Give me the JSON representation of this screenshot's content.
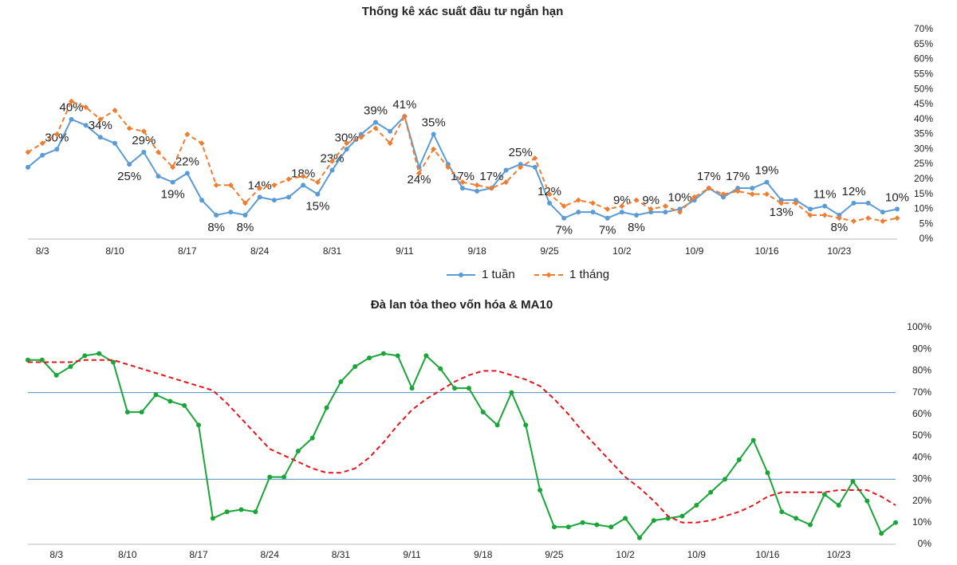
{
  "chart_data": [
    {
      "type": "line",
      "title": "Thống kê xác suất đầu tư ngắn hạn",
      "categories": [
        null,
        "8/3",
        null,
        null,
        null,
        null,
        "8/10",
        null,
        null,
        null,
        null,
        "8/17",
        null,
        null,
        null,
        null,
        "8/24",
        null,
        null,
        null,
        null,
        "8/31",
        null,
        null,
        null,
        null,
        "9/11",
        null,
        null,
        null,
        null,
        "9/18",
        null,
        null,
        null,
        null,
        "9/25",
        null,
        null,
        null,
        null,
        "10/2",
        null,
        null,
        null,
        null,
        "10/9",
        null,
        null,
        null,
        null,
        "10/16",
        null,
        null,
        null,
        null,
        "10/23",
        null,
        null,
        null,
        null
      ],
      "series": [
        {
          "name": "1 tuần",
          "color": "#5b9bd5",
          "dash": false,
          "markers": "circle",
          "values": [
            24,
            28,
            30,
            40,
            38,
            34,
            32,
            25,
            29,
            21,
            19,
            22,
            13,
            8,
            9,
            8,
            14,
            13,
            14,
            18,
            15,
            23,
            30,
            35,
            39,
            36,
            41,
            24,
            35,
            25,
            17,
            16,
            17,
            23,
            25,
            24,
            12,
            7,
            9,
            9,
            7,
            9,
            8,
            9,
            9,
            10,
            13,
            17,
            14,
            17,
            17,
            19,
            13,
            13,
            10,
            11,
            8,
            12,
            12,
            9,
            10
          ],
          "value_labels": [
            null,
            null,
            "30%",
            "40%",
            null,
            "34%",
            null,
            "25%",
            "29%",
            null,
            "19%",
            "22%",
            null,
            "8%",
            null,
            "8%",
            "14%",
            null,
            null,
            "18%",
            "15%",
            "23%",
            "30%",
            null,
            "39%",
            null,
            "41%",
            "24%",
            "35%",
            null,
            "17%",
            null,
            "17%",
            null,
            "25%",
            null,
            "12%",
            "7%",
            null,
            null,
            "7%",
            "9%",
            "8%",
            "9%",
            null,
            "10%",
            null,
            "17%",
            null,
            "17%",
            null,
            "19%",
            "13%",
            null,
            null,
            "11%",
            "8%",
            "12%",
            null,
            null,
            "10%"
          ]
        },
        {
          "name": "1 tháng",
          "color": "#ed7d31",
          "dash": true,
          "markers": "diamond",
          "values": [
            29,
            32,
            35,
            46,
            44,
            40,
            43,
            37,
            36,
            29,
            24,
            35,
            32,
            18,
            18,
            12,
            17,
            18,
            20,
            21,
            19,
            26,
            32,
            34,
            37,
            32,
            41,
            22,
            30,
            24,
            19,
            18,
            17,
            19,
            24,
            27,
            15,
            11,
            13,
            12,
            10,
            11,
            13,
            10,
            11,
            9,
            14,
            17,
            15,
            16,
            15,
            15,
            12,
            12,
            8,
            8,
            7,
            6,
            7,
            6,
            7
          ]
        }
      ],
      "ylim": [
        0,
        70
      ],
      "yticks": [
        {
          "value": 0,
          "label": "0%"
        },
        {
          "value": 5,
          "label": "5%"
        },
        {
          "value": 10,
          "label": "10%"
        },
        {
          "value": 15,
          "label": "15%"
        },
        {
          "value": 20,
          "label": "20%"
        },
        {
          "value": 25,
          "label": "25%"
        },
        {
          "value": 30,
          "label": "30%"
        },
        {
          "value": 35,
          "label": "35%"
        },
        {
          "value": 40,
          "label": "40%"
        },
        {
          "value": 45,
          "label": "45%"
        },
        {
          "value": 50,
          "label": "50%"
        },
        {
          "value": 55,
          "label": "55%"
        },
        {
          "value": 60,
          "label": "60%"
        },
        {
          "value": 65,
          "label": "65%"
        },
        {
          "value": 70,
          "label": "70%"
        }
      ],
      "y_axis_side": "right",
      "grid": false,
      "legend": "bottom"
    },
    {
      "type": "line",
      "title": "Đà lan tỏa theo vốn hóa & MA10",
      "categories": [
        null,
        null,
        "8/3",
        null,
        null,
        null,
        null,
        "8/10",
        null,
        null,
        null,
        null,
        "8/17",
        null,
        null,
        null,
        null,
        "8/24",
        null,
        null,
        null,
        null,
        "8/31",
        null,
        null,
        null,
        null,
        "9/11",
        null,
        null,
        null,
        null,
        "9/18",
        null,
        null,
        null,
        null,
        "9/25",
        null,
        null,
        null,
        null,
        "10/2",
        null,
        null,
        null,
        null,
        "10/9",
        null,
        null,
        null,
        null,
        "10/16",
        null,
        null,
        null,
        null,
        "10/23",
        null,
        null,
        null,
        null
      ],
      "series": [
        {
          "color": "#1aa538",
          "dash": false,
          "markers": "circle",
          "values": [
            85,
            85,
            78,
            82,
            87,
            88,
            84,
            61,
            61,
            69,
            66,
            64,
            55,
            12,
            15,
            16,
            15,
            31,
            31,
            43,
            49,
            63,
            75,
            82,
            86,
            88,
            87,
            72,
            87,
            81,
            72,
            72,
            61,
            55,
            70,
            55,
            25,
            8,
            8,
            10,
            9,
            8,
            12,
            3,
            11,
            12,
            13,
            18,
            24,
            30,
            39,
            48,
            33,
            15,
            12,
            9,
            23,
            18,
            29,
            20,
            5,
            10
          ]
        },
        {
          "color": "#e3141b",
          "dash": true,
          "markers": "none",
          "values": [
            84,
            84,
            84,
            84,
            85,
            85,
            85,
            83,
            81,
            79,
            77,
            75,
            73,
            71,
            65,
            58,
            51,
            44,
            41,
            38,
            35,
            33,
            33,
            35,
            40,
            47,
            55,
            62,
            67,
            71,
            75,
            78,
            80,
            80,
            78,
            76,
            73,
            67,
            60,
            52,
            45,
            38,
            31,
            26,
            20,
            13,
            10,
            10,
            11,
            13,
            15,
            18,
            22,
            24,
            24,
            24,
            24,
            25,
            25,
            25,
            22,
            18
          ]
        }
      ],
      "ylim": [
        0,
        100
      ],
      "yticks": [
        {
          "value": 0,
          "label": "0%"
        },
        {
          "value": 10,
          "label": "10%"
        },
        {
          "value": 20,
          "label": "20%"
        },
        {
          "value": 30,
          "label": "30%"
        },
        {
          "value": 40,
          "label": "40%"
        },
        {
          "value": 50,
          "label": "50%"
        },
        {
          "value": 60,
          "label": "60%"
        },
        {
          "value": 70,
          "label": "70%"
        },
        {
          "value": 80,
          "label": "80%"
        },
        {
          "value": 90,
          "label": "90%"
        },
        {
          "value": 100,
          "label": "100%"
        }
      ],
      "reference_lines": [
        70,
        30
      ],
      "reference_color": "#4f8fbf",
      "y_axis_side": "right",
      "grid": false
    }
  ]
}
